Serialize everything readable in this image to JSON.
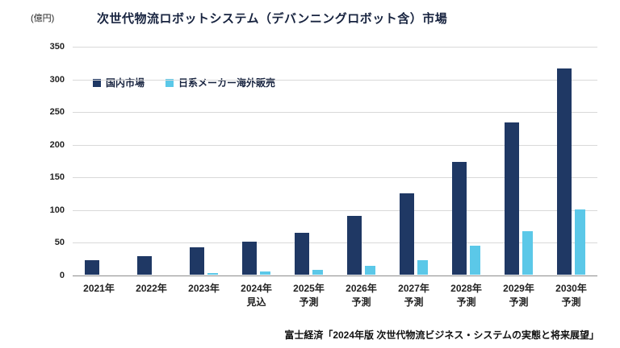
{
  "unit_label": "(億円)",
  "title": "次世代物流ロボットシステム（デバンニングロボット含）市場",
  "source": "富士経済「2024年版 次世代物流ビジネス・システムの実態と将来展望」",
  "colors": {
    "domestic": "#1f3864",
    "overseas": "#5bc8e8",
    "grid": "#d9d9d9",
    "axis": "#8c8c8c",
    "title_text": "#17233f"
  },
  "chart_data": {
    "type": "bar",
    "categories": [
      "2021年",
      "2022年",
      "2023年",
      "2024年\n見込",
      "2025年\n予測",
      "2026年\n予測",
      "2027年\n予測",
      "2028年\n予測",
      "2029年\n予測",
      "2030年\n予測"
    ],
    "series": [
      {
        "name": "国内市場",
        "color": "#1f3864",
        "values": [
          22,
          28,
          42,
          50,
          64,
          90,
          125,
          172,
          233,
          316
        ]
      },
      {
        "name": "日系メーカー海外販売",
        "color": "#5bc8e8",
        "values": [
          0,
          0,
          2,
          5,
          8,
          13,
          22,
          44,
          67,
          100
        ]
      }
    ],
    "title": "次世代物流ロボットシステム（デバンニングロボット含）市場",
    "xlabel": "",
    "ylabel": "(億円)",
    "ylim": [
      0,
      350
    ],
    "ytick_step": 50,
    "grid": true,
    "legend_position": "top-left-inside"
  }
}
